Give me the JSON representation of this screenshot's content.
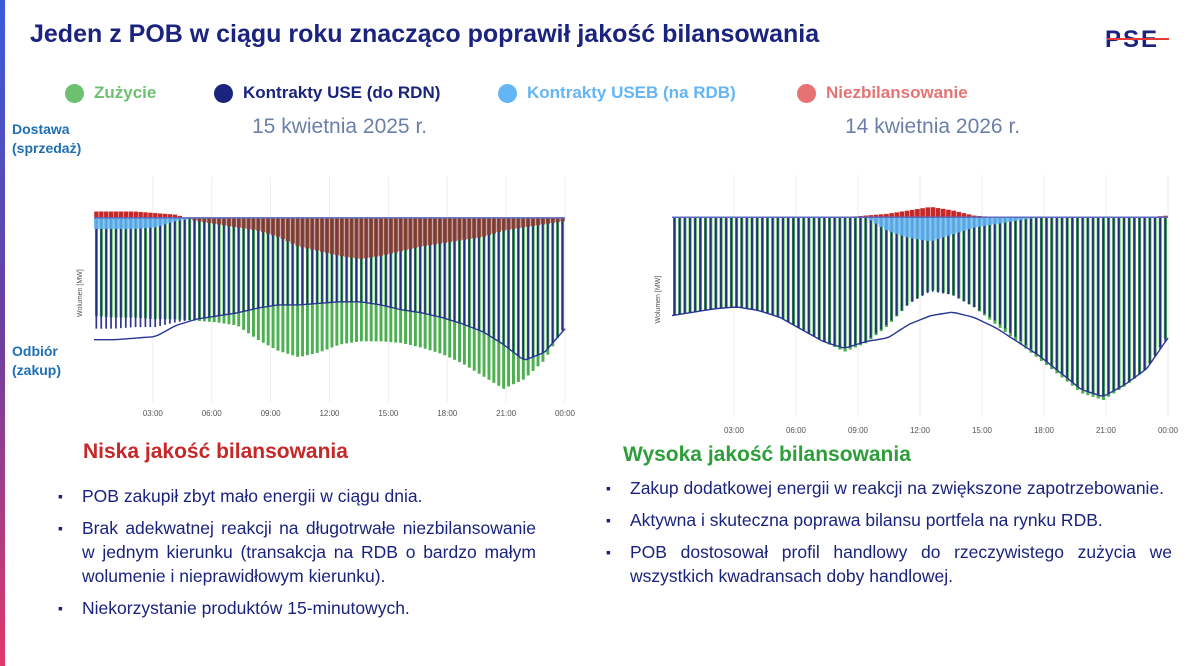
{
  "title": "Jeden z POB w ciągu roku znacząco poprawił jakość bilansowania",
  "logo_text": "PSE",
  "colors": {
    "green": "#4caf50",
    "dark_blue": "#1a237e",
    "light_blue": "#64b5f6",
    "red": "#e57373",
    "deficit": "#8b3a2f",
    "shortfall": "#c5cae9"
  },
  "legend": [
    {
      "label": "Zużycie",
      "color": "#6cc070"
    },
    {
      "label": "Kontrakty USE (do RDN)",
      "color": "#1a237e"
    },
    {
      "label": "Kontrakty USEB (na RDB)",
      "color": "#64b5f6"
    },
    {
      "label": "Niezbilansowanie",
      "color": "#e57373"
    }
  ],
  "side_labels": {
    "top": "Dostawa\n(sprzedaż)",
    "bottom": "Odbiór\n(zakup)"
  },
  "left": {
    "date": "15 kwietnia 2025 r.",
    "verdict": "Niska jakość bilansowania",
    "verdict_color": "#c62828",
    "bullets": [
      "POB zakupił zbyt mało energii w ciągu dnia.",
      "Brak adekwatnej reakcji na długotrwałe niezbilansowanie w jednym kierunku (transakcja na RDB o bardzo małym wolumenie i nieprawidłowym kierunku).",
      "Niekorzystanie produktów 15-minutowych."
    ]
  },
  "right": {
    "date": "14 kwietnia 2026 r.",
    "verdict": "Wysoka jakość bilansowania",
    "verdict_color": "#2e9e3a",
    "bullets": [
      "Zakup dodatkowej energii w reakcji na zwiększone zapotrzebowanie.",
      "Aktywna i skuteczna poprawa bilansu portfela na rynku RDB.",
      "POB dostosował profil handlowy do rzeczywistego zużycia we wszystkich kwadransach doby handlowej."
    ]
  },
  "chart_data": [
    {
      "type": "bar",
      "ylabel": "Wolumen [MW]",
      "xticks": [
        "03:00",
        "06:00",
        "09:00",
        "12:00",
        "15:00",
        "18:00",
        "21:00",
        "00:00"
      ],
      "x": {
        "unit": "hour",
        "range": [
          0,
          24
        ]
      },
      "y": {
        "range": [
          -1.1,
          0.1
        ],
        "note": "approximate relative scale, no numeric y ticks printed"
      },
      "series": [
        {
          "name": "Zużycie",
          "values": [
            -0.62,
            -0.63,
            -0.63,
            -0.64,
            -0.64,
            -0.65,
            -0.66,
            -0.68,
            -0.77,
            -0.84,
            -0.88,
            -0.85,
            -0.8,
            -0.78,
            -0.78,
            -0.79,
            -0.82,
            -0.86,
            -0.92,
            -1.0,
            -1.08,
            -1.02,
            -0.9,
            -0.68
          ]
        },
        {
          "name": "Kontrakty USE (do RDN)",
          "values": [
            -0.7,
            -0.7,
            -0.69,
            -0.69,
            -0.66,
            -0.64,
            -0.62,
            -0.6,
            -0.57,
            -0.55,
            -0.55,
            -0.54,
            -0.53,
            -0.53,
            -0.55,
            -0.58,
            -0.6,
            -0.63,
            -0.67,
            -0.72,
            -0.8,
            -0.9,
            -0.85,
            -0.7
          ]
        },
        {
          "name": "Kontrakty USEB (na RDB)",
          "values": [
            -0.07,
            -0.07,
            -0.07,
            -0.06,
            -0.02,
            0.0,
            0.0,
            0.0,
            0.0,
            0.0,
            0.0,
            0.0,
            0.0,
            0.0,
            0.0,
            0.0,
            0.0,
            0.0,
            0.0,
            0.0,
            0.0,
            0.0,
            0.0,
            0.0
          ]
        },
        {
          "name": "Niezbilansowanie",
          "values": [
            0.04,
            0.04,
            0.04,
            0.03,
            0.02,
            -0.02,
            -0.04,
            -0.06,
            -0.08,
            -0.12,
            -0.18,
            -0.21,
            -0.24,
            -0.26,
            -0.24,
            -0.21,
            -0.18,
            -0.16,
            -0.14,
            -0.12,
            -0.08,
            -0.06,
            -0.04,
            -0.02
          ]
        }
      ]
    },
    {
      "type": "bar",
      "ylabel": "Wolumen [MW]",
      "xticks": [
        "03:00",
        "06:00",
        "09:00",
        "12:00",
        "15:00",
        "18:00",
        "21:00",
        "00:00"
      ],
      "x": {
        "unit": "hour",
        "range": [
          0,
          24
        ]
      },
      "y": {
        "range": [
          -1.1,
          0.1
        ],
        "note": "approximate relative scale, no numeric y ticks printed"
      },
      "series": [
        {
          "name": "Zużycie",
          "values": [
            -0.57,
            -0.55,
            -0.53,
            -0.52,
            -0.54,
            -0.58,
            -0.65,
            -0.72,
            -0.78,
            -0.73,
            -0.63,
            -0.5,
            -0.42,
            -0.45,
            -0.52,
            -0.62,
            -0.72,
            -0.82,
            -0.92,
            -1.02,
            -1.06,
            -0.98,
            -0.88,
            -0.68
          ]
        },
        {
          "name": "Kontrakty USE (do RDN)",
          "values": [
            -0.57,
            -0.55,
            -0.53,
            -0.52,
            -0.54,
            -0.58,
            -0.65,
            -0.72,
            -0.76,
            -0.72,
            -0.62,
            -0.5,
            -0.43,
            -0.45,
            -0.52,
            -0.6,
            -0.7,
            -0.8,
            -0.9,
            -1.0,
            -1.04,
            -0.97,
            -0.88,
            -0.7
          ]
        },
        {
          "name": "Kontrakty USEB (na RDB)",
          "values": [
            0.0,
            0.0,
            0.0,
            0.0,
            0.0,
            0.0,
            0.0,
            0.0,
            0.0,
            0.0,
            -0.08,
            -0.12,
            -0.14,
            -0.1,
            -0.06,
            -0.04,
            -0.02,
            0.0,
            0.0,
            0.0,
            0.0,
            0.0,
            0.0,
            0.0
          ]
        },
        {
          "name": "Niezbilansowanie",
          "values": [
            0.0,
            0.0,
            0.0,
            0.0,
            0.0,
            0.0,
            0.0,
            0.0,
            0.0,
            0.01,
            0.02,
            0.04,
            0.06,
            0.04,
            0.01,
            0.0,
            0.0,
            0.0,
            0.0,
            0.0,
            0.0,
            0.0,
            0.0,
            0.01
          ]
        }
      ]
    }
  ]
}
